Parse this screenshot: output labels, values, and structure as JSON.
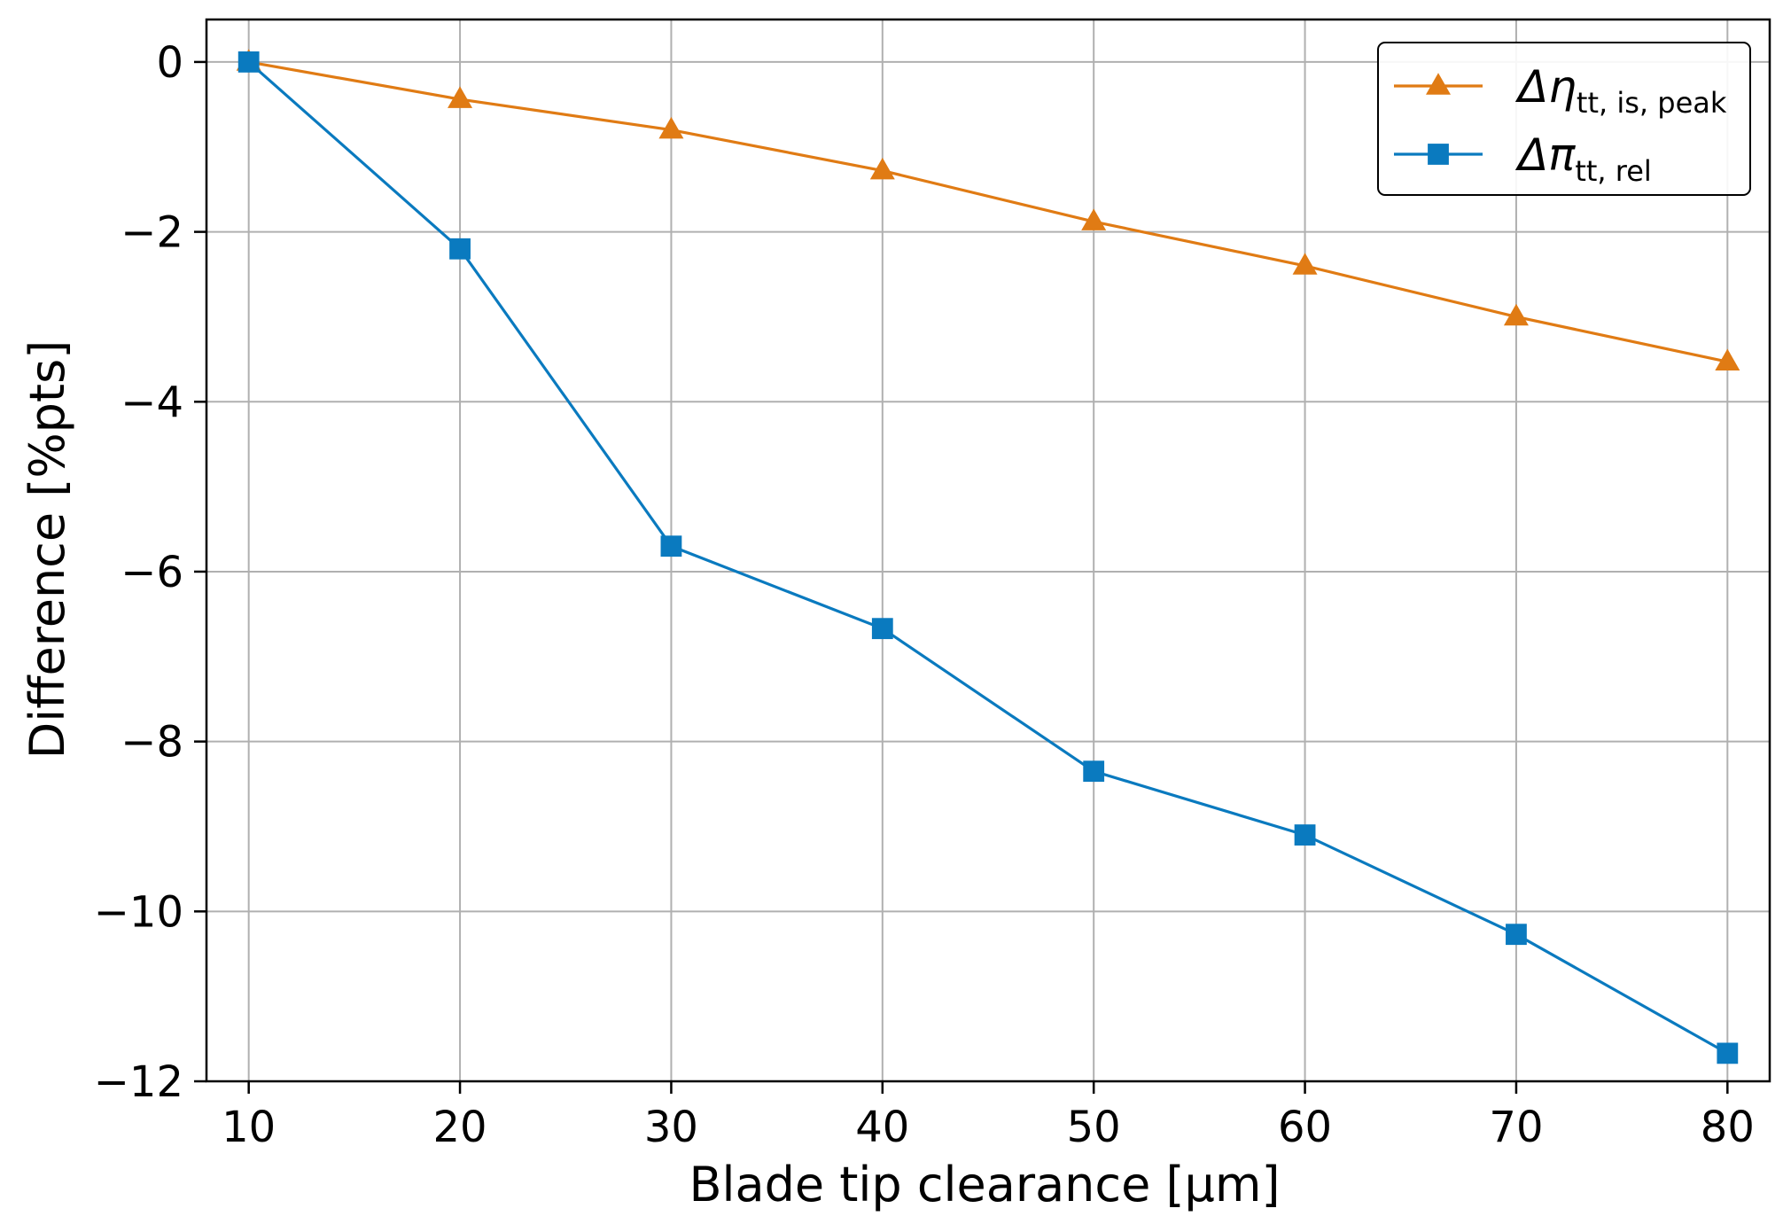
{
  "chart_data": {
    "type": "line",
    "title": "",
    "xlabel": "Blade tip clearance [µm]",
    "ylabel": "Difference [%pts]",
    "xlim": [
      8,
      82
    ],
    "ylim": [
      -12,
      0.5
    ],
    "xticks": [
      10,
      20,
      30,
      40,
      50,
      60,
      70,
      80
    ],
    "yticks": [
      0,
      -2,
      -4,
      -6,
      -8,
      -10,
      -12
    ],
    "xtick_labels": [
      "10",
      "20",
      "30",
      "40",
      "50",
      "60",
      "70",
      "80"
    ],
    "ytick_labels": [
      "0",
      "−2",
      "−4",
      "−6",
      "−8",
      "−10",
      "−12"
    ],
    "grid": true,
    "legend_position": "top-right",
    "x": [
      10,
      20,
      30,
      40,
      50,
      60,
      70,
      80
    ],
    "series": [
      {
        "name": "Δη_tt, is, peak",
        "label_main": "Δη",
        "label_sub": "tt, is, peak",
        "marker": "triangle",
        "color": "#E07B14",
        "values": [
          0.0,
          -0.44,
          -0.8,
          -1.28,
          -1.88,
          -2.4,
          -3.0,
          -3.53
        ]
      },
      {
        "name": "Δπ_tt, rel",
        "label_main": "Δπ",
        "label_sub": "tt, rel",
        "marker": "square",
        "color": "#0A7ABF",
        "values": [
          0.0,
          -2.2,
          -5.7,
          -6.67,
          -8.35,
          -9.1,
          -10.27,
          -11.67
        ]
      }
    ]
  }
}
